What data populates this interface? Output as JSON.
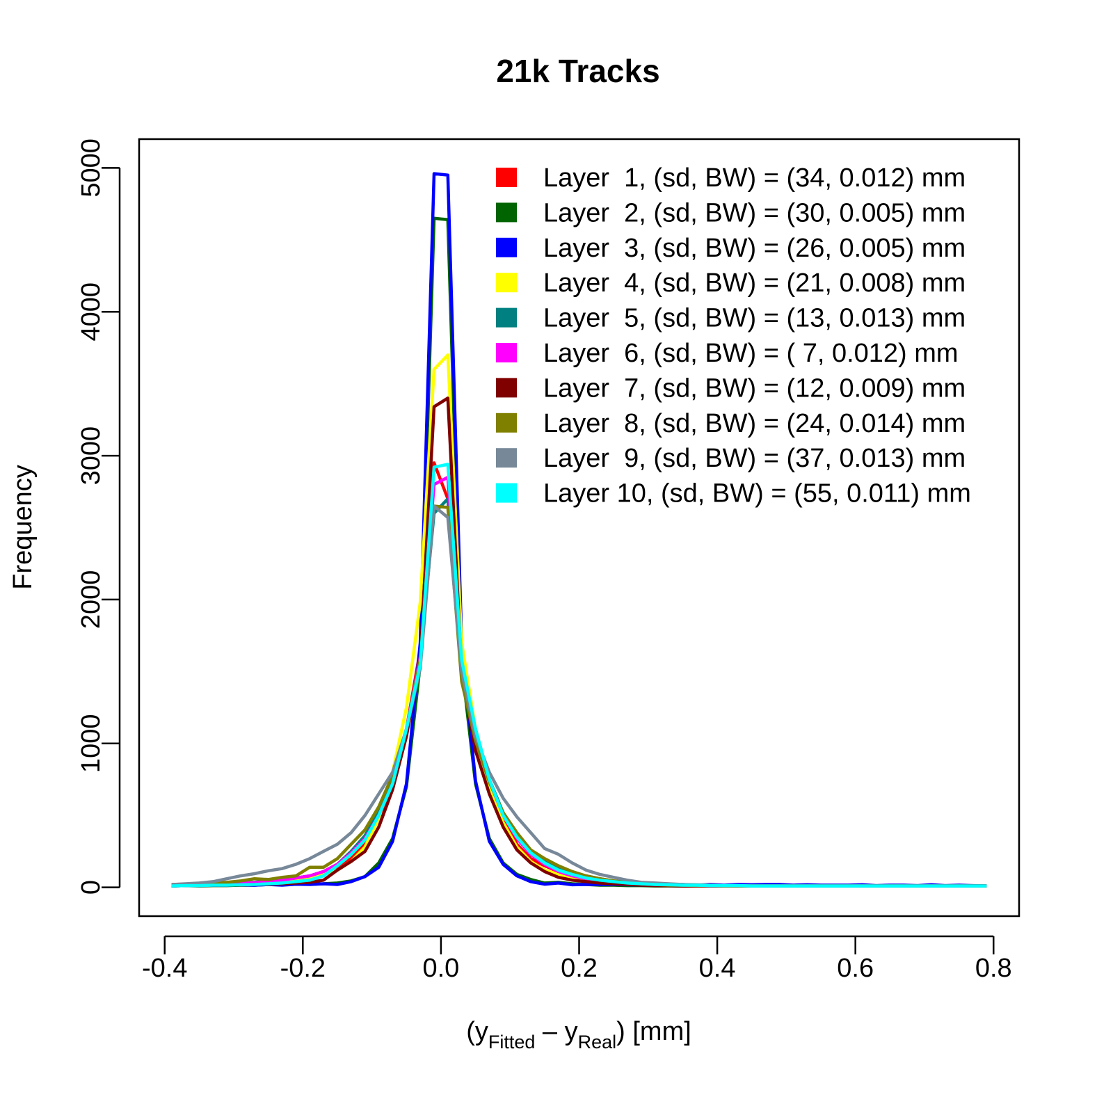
{
  "chart_data": {
    "type": "line",
    "title": "21k Tracks",
    "ylabel": "Frequency",
    "xlabel": {
      "open": "(y",
      "sub1": "Fitted",
      "minus": " – y",
      "sub2": "Real",
      "close": ")  [mm]"
    },
    "xlim": [
      -0.437,
      0.837
    ],
    "ylim": [
      -200,
      5200
    ],
    "xticks": [
      {
        "value": -0.4,
        "label": "-0.4"
      },
      {
        "value": -0.2,
        "label": "-0.2"
      },
      {
        "value": 0.0,
        "label": "0.0"
      },
      {
        "value": 0.2,
        "label": "0.2"
      },
      {
        "value": 0.4,
        "label": "0.4"
      },
      {
        "value": 0.6,
        "label": "0.6"
      },
      {
        "value": 0.8,
        "label": "0.8"
      }
    ],
    "yticks": [
      {
        "value": 0,
        "label": "0"
      },
      {
        "value": 1000,
        "label": "1000"
      },
      {
        "value": 2000,
        "label": "2000"
      },
      {
        "value": 3000,
        "label": "3000"
      },
      {
        "value": 4000,
        "label": "4000"
      },
      {
        "value": 5000,
        "label": "5000"
      }
    ],
    "legend_position": "top-right",
    "x": [
      -0.39,
      -0.37,
      -0.35,
      -0.33,
      -0.31,
      -0.29,
      -0.27,
      -0.25,
      -0.23,
      -0.21,
      -0.19,
      -0.17,
      -0.15,
      -0.13,
      -0.11,
      -0.09,
      -0.07,
      -0.05,
      -0.03,
      -0.01,
      0.01,
      0.03,
      0.05,
      0.07,
      0.09,
      0.11,
      0.13,
      0.15,
      0.17,
      0.19,
      0.21,
      0.23,
      0.25,
      0.27,
      0.29,
      0.31,
      0.33,
      0.35,
      0.37,
      0.39,
      0.41,
      0.43,
      0.45,
      0.47,
      0.49,
      0.51,
      0.53,
      0.55,
      0.57,
      0.59,
      0.61,
      0.63,
      0.65,
      0.67,
      0.69,
      0.71,
      0.73,
      0.75,
      0.77,
      0.79
    ],
    "series": [
      {
        "name": "Layer  1, (sd, BW) = (34, 0.012) mm",
        "color": "#FF0000",
        "values": [
          15,
          18,
          20,
          22,
          25,
          30,
          35,
          40,
          45,
          55,
          70,
          90,
          140,
          200,
          300,
          480,
          700,
          1100,
          1650,
          2950,
          2700,
          1500,
          1050,
          720,
          480,
          300,
          200,
          150,
          110,
          80,
          55,
          40,
          30,
          22,
          18,
          15,
          12,
          10,
          10,
          10,
          10,
          10,
          10,
          10,
          10,
          10,
          10,
          10,
          10,
          10,
          10,
          10,
          10,
          10,
          10,
          10,
          10,
          10,
          10,
          10
        ]
      },
      {
        "name": "Layer  2, (sd, BW) = (30, 0.005) mm",
        "color": "#006400",
        "values": [
          10,
          12,
          10,
          12,
          12,
          15,
          15,
          20,
          20,
          25,
          22,
          25,
          30,
          45,
          75,
          170,
          340,
          700,
          1550,
          4650,
          4640,
          1550,
          720,
          340,
          170,
          90,
          55,
          30,
          35,
          25,
          20,
          15,
          15,
          12,
          12,
          10,
          10,
          10,
          10,
          10,
          10,
          10,
          10,
          10,
          10,
          10,
          10,
          10,
          10,
          10,
          10,
          10,
          10,
          10,
          10,
          10,
          10,
          10,
          10,
          10
        ]
      },
      {
        "name": "Layer  3, (sd, BW) = (26, 0.005) mm",
        "color": "#0000FF",
        "values": [
          10,
          12,
          12,
          15,
          15,
          18,
          15,
          20,
          15,
          22,
          20,
          25,
          20,
          40,
          75,
          140,
          320,
          720,
          1700,
          4960,
          4950,
          1700,
          740,
          320,
          160,
          80,
          40,
          22,
          30,
          18,
          20,
          20,
          20,
          18,
          15,
          18,
          18,
          20,
          15,
          20,
          15,
          20,
          18,
          20,
          20,
          15,
          18,
          15,
          15,
          15,
          18,
          12,
          15,
          15,
          12,
          18,
          12,
          15,
          12,
          10
        ]
      },
      {
        "name": "Layer  4, (sd, BW) = (21, 0.008) mm",
        "color": "#FFFF00",
        "values": [
          15,
          18,
          20,
          22,
          25,
          30,
          35,
          40,
          45,
          55,
          70,
          90,
          120,
          180,
          280,
          480,
          800,
          1250,
          1980,
          3600,
          3700,
          1700,
          1100,
          700,
          450,
          280,
          180,
          120,
          90,
          65,
          45,
          35,
          28,
          22,
          18,
          15,
          12,
          12,
          10,
          10,
          10,
          10,
          10,
          10,
          10,
          10,
          10,
          10,
          10,
          10,
          10,
          10,
          10,
          10,
          10,
          10,
          10,
          10,
          10,
          10
        ]
      },
      {
        "name": "Layer  5, (sd, BW) = (13, 0.013) mm",
        "color": "#008080",
        "values": [
          15,
          18,
          20,
          22,
          25,
          30,
          35,
          45,
          55,
          65,
          80,
          110,
          160,
          250,
          360,
          520,
          760,
          1100,
          1600,
          2600,
          2700,
          1500,
          1100,
          750,
          520,
          360,
          250,
          180,
          130,
          100,
          80,
          60,
          45,
          35,
          25,
          20,
          15,
          12,
          12,
          10,
          10,
          10,
          10,
          10,
          10,
          10,
          10,
          10,
          10,
          10,
          10,
          10,
          10,
          10,
          10,
          10,
          10,
          10,
          10,
          10
        ]
      },
      {
        "name": "Layer  6, (sd, BW) = ( 7, 0.012) mm",
        "color": "#FF00FF",
        "values": [
          12,
          15,
          18,
          20,
          22,
          28,
          32,
          40,
          50,
          65,
          80,
          110,
          160,
          240,
          340,
          500,
          720,
          1100,
          1600,
          2800,
          2850,
          1550,
          1080,
          740,
          500,
          340,
          230,
          160,
          110,
          80,
          60,
          45,
          35,
          25,
          20,
          15,
          12,
          12,
          10,
          10,
          10,
          10,
          10,
          10,
          10,
          10,
          10,
          10,
          10,
          10,
          10,
          10,
          10,
          10,
          10,
          10,
          10,
          10,
          10,
          10
        ]
      },
      {
        "name": "Layer  7, (sd, BW) = (12, 0.009) mm",
        "color": "#800000",
        "values": [
          10,
          12,
          12,
          15,
          15,
          18,
          20,
          22,
          25,
          30,
          35,
          50,
          120,
          180,
          250,
          420,
          680,
          1050,
          1580,
          3340,
          3400,
          1500,
          950,
          650,
          420,
          260,
          170,
          110,
          70,
          50,
          40,
          30,
          25,
          20,
          15,
          12,
          12,
          10,
          10,
          10,
          10,
          10,
          10,
          10,
          10,
          10,
          10,
          10,
          10,
          10,
          10,
          10,
          10,
          10,
          10,
          10,
          10,
          10,
          10,
          10
        ]
      },
      {
        "name": "Layer  8, (sd, BW) = (24, 0.014) mm",
        "color": "#808000",
        "values": [
          20,
          22,
          25,
          30,
          35,
          45,
          60,
          55,
          70,
          80,
          140,
          140,
          200,
          300,
          400,
          560,
          780,
          1100,
          1580,
          2650,
          2640,
          1430,
          1020,
          730,
          520,
          380,
          260,
          200,
          150,
          110,
          80,
          60,
          45,
          35,
          25,
          20,
          15,
          15,
          12,
          12,
          10,
          10,
          10,
          10,
          10,
          10,
          10,
          10,
          10,
          10,
          10,
          10,
          10,
          10,
          10,
          10,
          10,
          10,
          10,
          10
        ]
      },
      {
        "name": "Layer  9, (sd, BW) = (37, 0.013) mm",
        "color": "#778899",
        "values": [
          20,
          25,
          30,
          40,
          60,
          80,
          95,
          115,
          130,
          160,
          200,
          250,
          300,
          380,
          500,
          650,
          800,
          1100,
          1520,
          2650,
          2570,
          1500,
          1050,
          800,
          620,
          490,
          380,
          270,
          230,
          170,
          120,
          90,
          70,
          50,
          35,
          30,
          25,
          20,
          18,
          15,
          12,
          12,
          10,
          10,
          10,
          10,
          10,
          10,
          10,
          10,
          10,
          10,
          10,
          10,
          10,
          10,
          10,
          10,
          10,
          10
        ]
      },
      {
        "name": "Layer 10, (sd, BW) = (55, 0.011) mm",
        "color": "#00FFFF",
        "values": [
          10,
          12,
          12,
          15,
          15,
          18,
          20,
          25,
          30,
          40,
          50,
          80,
          150,
          230,
          330,
          500,
          720,
          1100,
          1550,
          2920,
          2940,
          1580,
          1100,
          750,
          500,
          350,
          240,
          170,
          120,
          90,
          65,
          50,
          40,
          30,
          25,
          20,
          18,
          15,
          15,
          12,
          12,
          12,
          10,
          10,
          10,
          10,
          10,
          10,
          10,
          10,
          10,
          10,
          10,
          10,
          10,
          10,
          10,
          10,
          10,
          10
        ]
      }
    ]
  }
}
